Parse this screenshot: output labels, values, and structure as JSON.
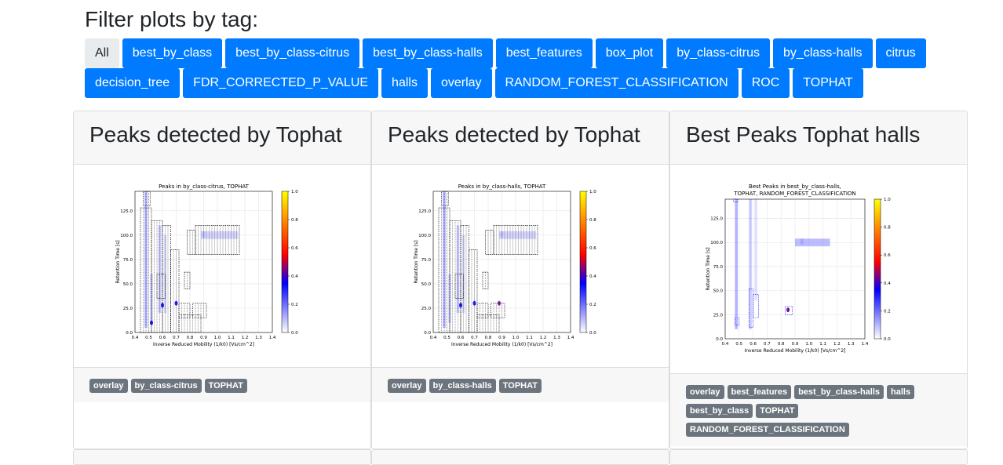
{
  "filter": {
    "title": "Filter plots by tag:",
    "tags_row1": [
      "All",
      "best_by_class",
      "best_by_class-citrus",
      "best_by_class-halls",
      "best_features",
      "box_plot",
      "by_class-citrus",
      "by_class-halls",
      "citrus"
    ],
    "tags_row2": [
      "decision_tree",
      "FDR_CORRECTED_P_VALUE",
      "halls",
      "overlay",
      "RANDOM_FOREST_CLASSIFICATION",
      "ROC",
      "TOPHAT"
    ],
    "active_tag": "All"
  },
  "cards": [
    {
      "title": "Peaks detected by Tophat",
      "plot_title_lines": [
        "Peaks in by_class-citrus, TOPHAT"
      ],
      "badges": [
        "overlay",
        "by_class-citrus",
        "TOPHAT"
      ]
    },
    {
      "title": "Peaks detected by Tophat",
      "plot_title_lines": [
        "Peaks in by_class-halls, TOPHAT"
      ],
      "badges": [
        "overlay",
        "by_class-halls",
        "TOPHAT"
      ]
    },
    {
      "title": "Best Peaks Tophat halls",
      "plot_title_lines": [
        "Best Peaks in best_by_class-halls,",
        "TOPHAT, RANDOM_FOREST_CLASSIFICATION"
      ],
      "badges": [
        "overlay",
        "best_features",
        "best_by_class-halls",
        "halls",
        "best_by_class",
        "TOPHAT",
        "RANDOM_FOREST_CLASSIFICATION"
      ]
    }
  ],
  "plot_axes": {
    "xlabel": "Inverse Reduced Mobility (1/k0) [Vs/cm^2]",
    "ylabel": "Retention Time [s]",
    "xticks": [
      "0.4",
      "0.5",
      "0.6",
      "0.7",
      "0.8",
      "0.9",
      "1.0",
      "1.1",
      "1.2",
      "1.3",
      "1.4"
    ],
    "yticks": [
      "0.0",
      "25.0",
      "50.0",
      "75.0",
      "100.0",
      "125.0"
    ],
    "colorbar_ticks": [
      "0.0",
      "0.2",
      "0.4",
      "0.6",
      "0.8",
      "1.0"
    ]
  }
}
